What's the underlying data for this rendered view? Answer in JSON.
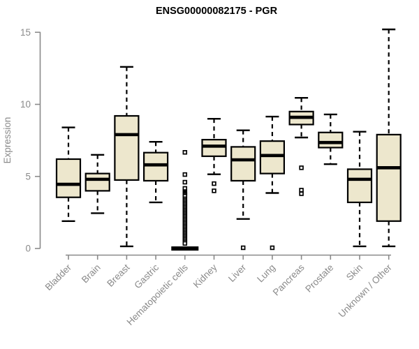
{
  "chart_data": {
    "type": "boxplot",
    "title": "ENSG00000082175 - PGR",
    "ylabel": "Expression",
    "xlabel": "",
    "ylim": [
      0,
      15
    ],
    "yticks": [
      0,
      5,
      10,
      15
    ],
    "grid": false,
    "legend": false,
    "categories": [
      "Bladder",
      "Brain",
      "Breast",
      "Gastric",
      "Hematopoietic cells",
      "Kidney",
      "Liver",
      "Lung",
      "Pancreas",
      "Prostate",
      "Skin",
      "Unknown / Other"
    ],
    "boxes": [
      {
        "category": "Bladder",
        "whislo": 1.9,
        "q1": 3.55,
        "med": 4.45,
        "q3": 6.2,
        "whishi": 8.4,
        "outliers": []
      },
      {
        "category": "Brain",
        "whislo": 2.45,
        "q1": 4.0,
        "med": 4.8,
        "q3": 5.2,
        "whishi": 6.5,
        "outliers": []
      },
      {
        "category": "Breast",
        "whislo": 0.15,
        "q1": 4.75,
        "med": 7.9,
        "q3": 9.2,
        "whishi": 12.6,
        "outliers": []
      },
      {
        "category": "Gastric",
        "whislo": 3.2,
        "q1": 4.7,
        "med": 5.8,
        "q3": 6.65,
        "whishi": 7.4,
        "outliers": []
      },
      {
        "category": "Hematopoietic cells",
        "whislo": 0.0,
        "q1": 0.0,
        "med": 0.0,
        "q3": 0.0,
        "whishi": 0.0,
        "outliers": [
          6.67,
          5.13,
          4.6,
          4.17,
          3.95,
          3.87,
          3.79,
          3.71,
          3.63,
          3.45,
          3.35,
          3.25,
          3.15,
          3.05,
          2.95,
          2.85,
          2.75,
          2.65,
          2.55,
          2.45,
          2.35,
          2.25,
          2.15,
          2.05,
          1.95,
          1.85,
          1.75,
          1.65,
          1.55,
          1.45,
          1.35,
          1.25,
          1.15,
          1.05,
          0.95,
          0.85,
          0.75,
          0.65,
          0.55,
          0.45,
          0.35
        ]
      },
      {
        "category": "Kidney",
        "whislo": 5.15,
        "q1": 6.4,
        "med": 7.1,
        "q3": 7.55,
        "whishi": 9.0,
        "outliers": [
          4.5,
          4.0
        ]
      },
      {
        "category": "Liver",
        "whislo": 2.05,
        "q1": 4.7,
        "med": 6.15,
        "q3": 7.05,
        "whishi": 8.2,
        "outliers": [
          0.05
        ]
      },
      {
        "category": "Lung",
        "whislo": 3.85,
        "q1": 5.2,
        "med": 6.45,
        "q3": 7.45,
        "whishi": 9.15,
        "outliers": [
          0.05
        ]
      },
      {
        "category": "Pancreas",
        "whislo": 7.7,
        "q1": 8.6,
        "med": 9.1,
        "q3": 9.5,
        "whishi": 10.45,
        "outliers": [
          5.6,
          4.05,
          3.8
        ]
      },
      {
        "category": "Prostate",
        "whislo": 5.85,
        "q1": 7.0,
        "med": 7.35,
        "q3": 8.05,
        "whishi": 9.3,
        "outliers": []
      },
      {
        "category": "Skin",
        "whislo": 0.15,
        "q1": 3.2,
        "med": 4.8,
        "q3": 5.5,
        "whishi": 8.1,
        "outliers": []
      },
      {
        "category": "Unknown / Other",
        "whislo": 0.15,
        "q1": 1.9,
        "med": 5.6,
        "q3": 7.9,
        "whishi": 15.2,
        "outliers": []
      }
    ]
  },
  "colors": {
    "box_fill": "#EDE7CD",
    "box_stroke": "#000000",
    "median": "#000000",
    "axis": "#8A8A8A",
    "tick_label": "#8A8A8A",
    "title": "#000000",
    "background": "#FFFFFF"
  }
}
